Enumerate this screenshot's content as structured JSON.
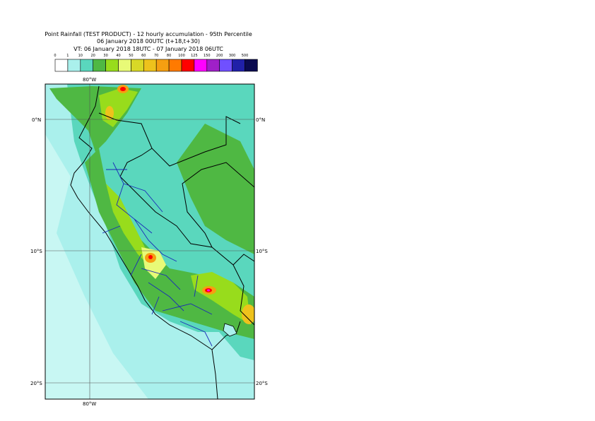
{
  "header": {
    "title": "Point Rainfall (TEST PRODUCT) - 12 hourly accumulation - 95th Percentile",
    "base_time": "06 January 2018 00UTC (t+18,t+30)",
    "valid_time": "VT: 06 January 2018 18UTC - 07 January 2018 06UTC"
  },
  "legend": {
    "ticks": [
      "0",
      "1",
      "10",
      "20",
      "30",
      "40",
      "50",
      "60",
      "70",
      "80",
      "100",
      "125",
      "150",
      "200",
      "300",
      "500"
    ],
    "colors": [
      "#ffffff",
      "#aaf0ec",
      "#5ad7bd",
      "#4fb843",
      "#98dc1c",
      "#e8fa77",
      "#d8d827",
      "#eec21c",
      "#f59f11",
      "#ff7a00",
      "#ff0000",
      "#ff00ff",
      "#a020c8",
      "#7050ff",
      "#2020a8",
      "#0a0a50"
    ]
  },
  "map": {
    "lat_labels": [
      "0°N",
      "10°S",
      "20°S"
    ],
    "lon_label": "80°W",
    "ocean_color": "#aaf0ec"
  }
}
